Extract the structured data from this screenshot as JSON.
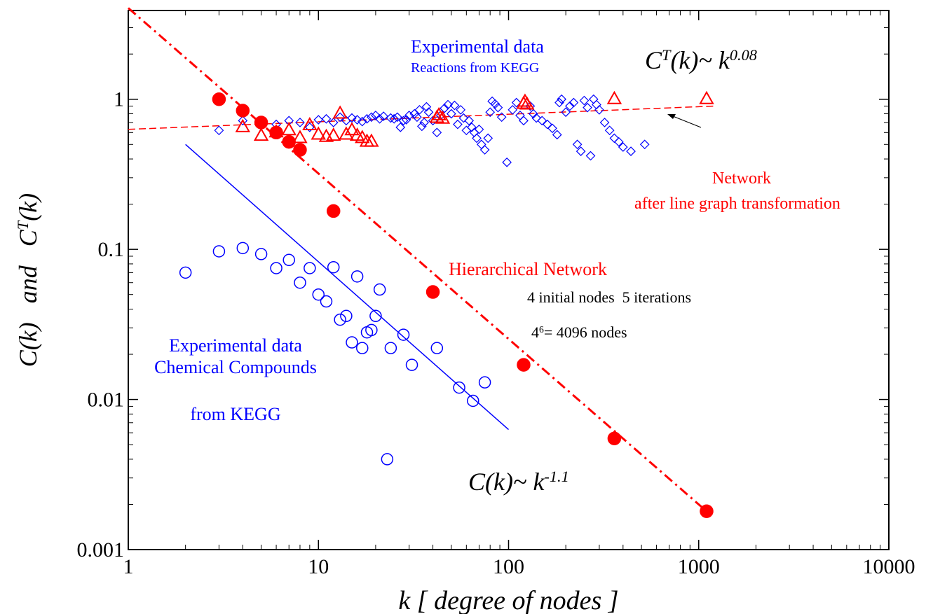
{
  "chart_data": {
    "type": "scatter",
    "log_x": true,
    "log_y": true,
    "xlim": [
      1,
      10000
    ],
    "ylim": [
      0.001,
      3.9
    ],
    "xticks": [
      1,
      10,
      100,
      1000,
      10000
    ],
    "yticks": [
      0.001,
      0.01,
      0.1,
      1
    ],
    "xlabel": "k [ degree of nodes ]",
    "ylabel": [
      {
        "text": "C(k)   and   C"
      },
      {
        "text": "T",
        "sup": true
      },
      {
        "text": "(k)"
      }
    ],
    "series": [
      {
        "kind": "line",
        "style": "dashdot",
        "color": "#ff0000",
        "x": [
          1,
          1100
        ],
        "values": [
          4.05,
          0.0018
        ]
      },
      {
        "kind": "line",
        "style": "solid",
        "color": "#0000ff",
        "x": [
          2,
          100
        ],
        "values": [
          0.5,
          0.0063
        ]
      },
      {
        "kind": "line",
        "style": "dashed",
        "color": "#ff0000",
        "x": [
          1,
          1200
        ],
        "values": [
          0.63,
          0.9
        ]
      },
      {
        "kind": "markers",
        "marker": "diamond",
        "filled": false,
        "color": "#0000ff",
        "x": [
          3,
          4,
          5,
          6,
          7,
          8,
          9,
          10,
          11,
          12,
          13,
          14,
          15,
          16,
          17,
          18,
          19,
          20,
          21,
          22,
          24,
          25,
          26,
          27,
          28,
          29,
          30,
          32,
          33,
          34,
          35,
          36,
          37,
          38,
          40,
          42,
          44,
          46,
          48,
          50,
          52,
          54,
          56,
          58,
          60,
          62,
          64,
          66,
          68,
          70,
          72,
          75,
          78,
          80,
          82,
          85,
          88,
          92,
          98,
          105,
          110,
          115,
          120,
          130,
          135,
          140,
          150,
          160,
          170,
          180,
          185,
          190,
          200,
          210,
          220,
          230,
          240,
          250,
          260,
          270,
          280,
          290,
          300,
          320,
          340,
          360,
          380,
          400,
          440,
          520
        ],
        "values": [
          0.62,
          0.72,
          0.7,
          0.68,
          0.72,
          0.7,
          0.65,
          0.73,
          0.74,
          0.7,
          0.76,
          0.72,
          0.75,
          0.73,
          0.71,
          0.74,
          0.76,
          0.78,
          0.74,
          0.77,
          0.75,
          0.74,
          0.76,
          0.65,
          0.72,
          0.73,
          0.78,
          0.8,
          0.76,
          0.85,
          0.66,
          0.7,
          0.89,
          0.82,
          0.72,
          0.6,
          0.78,
          0.87,
          0.92,
          0.8,
          0.91,
          0.68,
          0.85,
          0.75,
          0.62,
          0.72,
          0.65,
          0.6,
          0.55,
          0.63,
          0.5,
          0.46,
          0.55,
          0.82,
          0.97,
          0.93,
          0.88,
          0.76,
          0.38,
          0.85,
          0.95,
          0.78,
          0.72,
          0.9,
          0.8,
          0.75,
          0.72,
          0.68,
          0.64,
          0.58,
          0.95,
          1.0,
          0.82,
          0.9,
          0.95,
          0.5,
          0.45,
          0.98,
          0.88,
          0.42,
          1.0,
          0.92,
          0.85,
          0.7,
          0.62,
          0.55,
          0.52,
          0.48,
          0.45,
          0.5
        ]
      },
      {
        "kind": "markers",
        "marker": "triangle",
        "filled": false,
        "color": "#ff0000",
        "x": [
          4,
          5,
          6,
          7,
          8,
          9,
          10,
          11,
          12,
          13,
          14,
          15,
          16,
          17,
          18,
          19,
          42,
          43,
          45,
          120,
          122,
          125,
          360,
          1100
        ],
        "values": [
          0.65,
          0.57,
          0.6,
          0.62,
          0.55,
          0.67,
          0.58,
          0.56,
          0.57,
          0.8,
          0.58,
          0.62,
          0.57,
          0.55,
          0.52,
          0.52,
          0.75,
          0.78,
          0.74,
          0.93,
          0.96,
          0.92,
          1.0,
          1.0
        ]
      },
      {
        "kind": "markers",
        "marker": "circle",
        "filled": false,
        "color": "#0000ff",
        "x": [
          2,
          3,
          4,
          5,
          6,
          7,
          8,
          9,
          10,
          11,
          12,
          13,
          14,
          15,
          16,
          17,
          18,
          19,
          20,
          21,
          23,
          24,
          28,
          31,
          42,
          55,
          65,
          75
        ],
        "values": [
          0.07,
          0.097,
          0.102,
          0.093,
          0.075,
          0.085,
          0.06,
          0.075,
          0.05,
          0.045,
          0.076,
          0.034,
          0.036,
          0.024,
          0.066,
          0.022,
          0.028,
          0.029,
          0.036,
          0.054,
          0.004,
          0.022,
          0.027,
          0.017,
          0.022,
          0.012,
          0.0098,
          0.013
        ]
      },
      {
        "kind": "markers",
        "marker": "circle",
        "filled": true,
        "color": "#ff0000",
        "x": [
          3,
          4,
          5,
          6,
          7,
          8,
          12,
          40,
          120,
          360,
          1100
        ],
        "values": [
          1.0,
          0.84,
          0.7,
          0.6,
          0.52,
          0.46,
          0.18,
          0.052,
          0.017,
          0.0055,
          0.0018
        ]
      }
    ],
    "annotations": [
      {
        "color": "#0000ff",
        "parts": [
          {
            "text": "Experimental data"
          }
        ]
      },
      {
        "color": "#0000ff",
        "parts": [
          {
            "text": "Reactions from KEGG"
          }
        ]
      },
      {
        "color": "#000000",
        "italic": true,
        "parts": [
          {
            "text": "C"
          },
          {
            "text": "T",
            "sup": true
          },
          {
            "text": "(k)~ k"
          },
          {
            "text": "0.08",
            "sup": true
          }
        ]
      },
      {
        "color": "#ff0000",
        "parts": [
          {
            "text": "Network"
          }
        ]
      },
      {
        "color": "#ff0000",
        "parts": [
          {
            "text": "after line graph transformation"
          }
        ]
      },
      {
        "color": "#ff0000",
        "parts": [
          {
            "text": "Hierarchical Network"
          }
        ]
      },
      {
        "color": "#000000",
        "parts": [
          {
            "text": "4 initial nodes  5 iterations"
          }
        ]
      },
      {
        "color": "#000000",
        "parts": [
          {
            "text": "4"
          },
          {
            "text": "6",
            "sup": true
          },
          {
            "text": "= 4096 nodes"
          }
        ]
      },
      {
        "color": "#0000ff",
        "parts": [
          {
            "text": "Experimental data"
          }
        ]
      },
      {
        "color": "#0000ff",
        "parts": [
          {
            "text": "Chemical Compounds"
          }
        ]
      },
      {
        "color": "#0000ff",
        "parts": [
          {
            "text": "from KEGG"
          }
        ]
      },
      {
        "color": "#000000",
        "italic": true,
        "parts": [
          {
            "text": "C(k)~ k"
          },
          {
            "text": "-1.1",
            "sup": true
          }
        ]
      }
    ]
  }
}
